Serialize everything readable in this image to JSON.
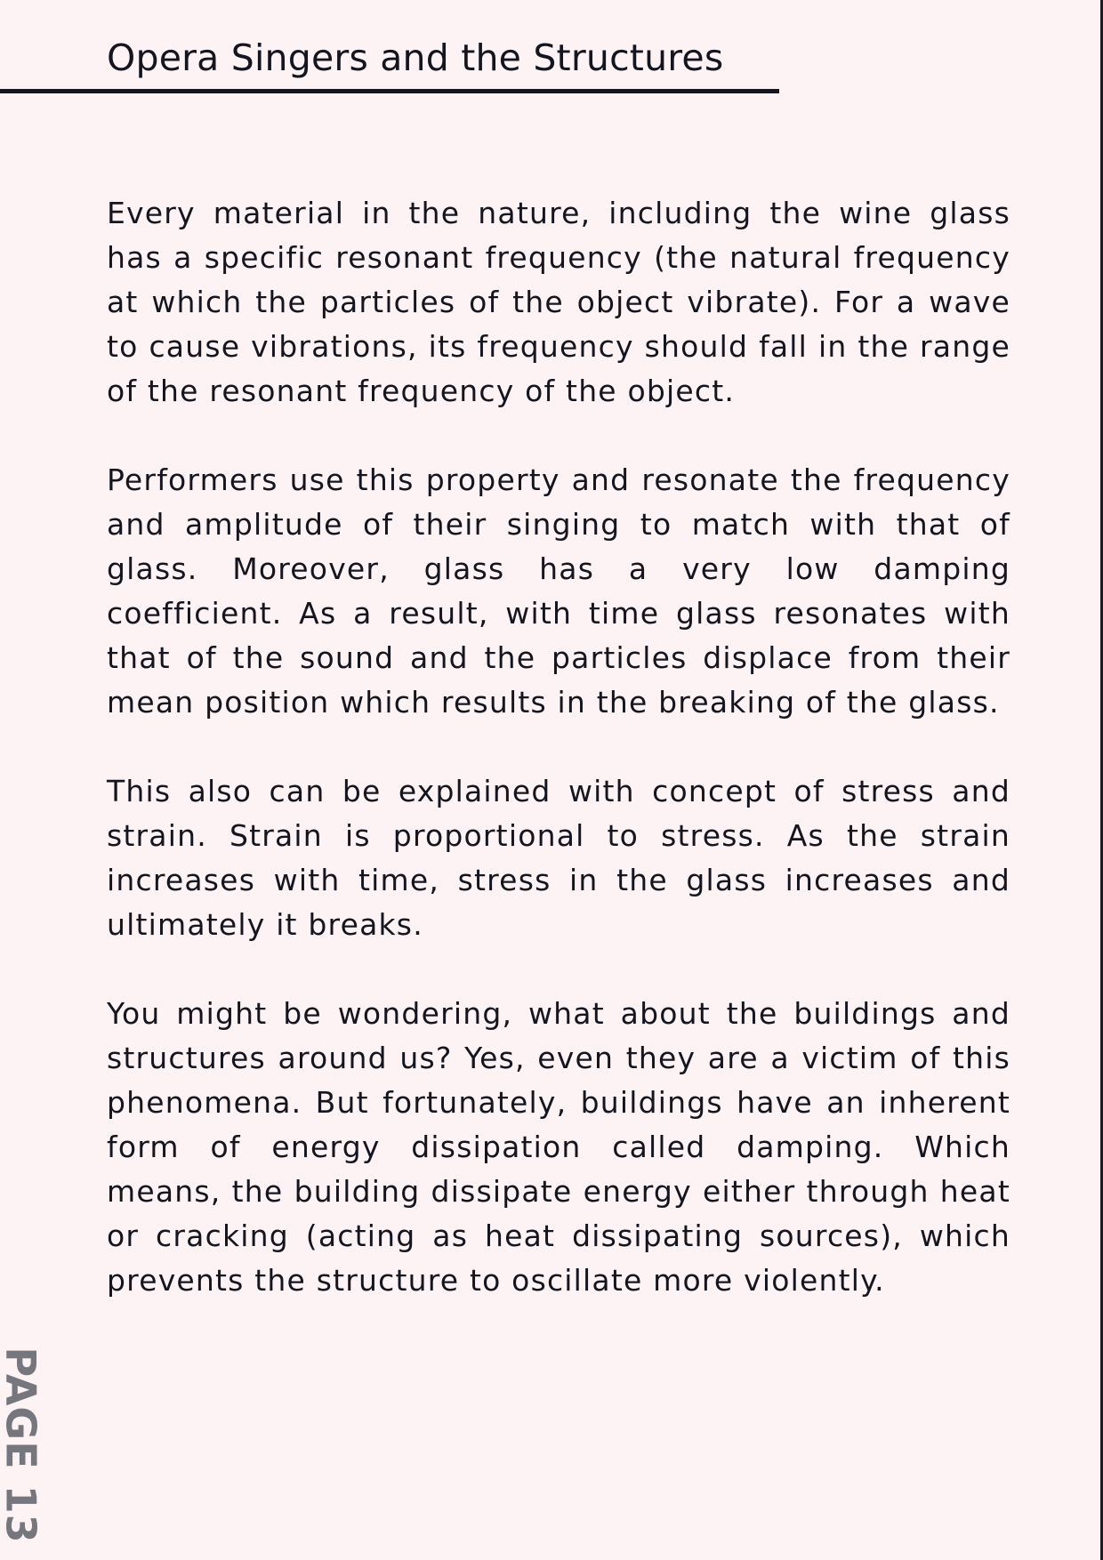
{
  "header": {
    "title": "Opera Singers and the Structures"
  },
  "paragraphs": [
    "Every material in the nature, including the wine glass has a specific resonant frequency (the natural frequency at which the particles of the object vibrate). For a wave to cause vibrations, its frequency should fall in the range of the resonant frequency of the object.",
    "Performers use this property and resonate the frequency and amplitude of their singing to match with that of glass. Moreover, glass has a very low damping coefficient. As a result, with time glass resonates with that of the sound and the particles displace from their mean position which results in the breaking of the glass.",
    "This also can be explained with concept of stress and strain. Strain is proportional to stress. As the strain increases with time, stress in the glass increases and ultimately it breaks.",
    "You might be wondering, what about the buildings and structures around us? Yes, even they are a victim of this phenomena. But fortunately, buildings have an inherent form of energy dissipation called damping. Which means, the building dissipate energy either through heat or cracking (acting as heat dissipating sources), which prevents the structure to oscillate more violently."
  ],
  "footer": {
    "page_label": "PAGE 13"
  },
  "colors": {
    "background": "#fdf3f4",
    "text": "#15151f",
    "page_label": "#76767e"
  }
}
